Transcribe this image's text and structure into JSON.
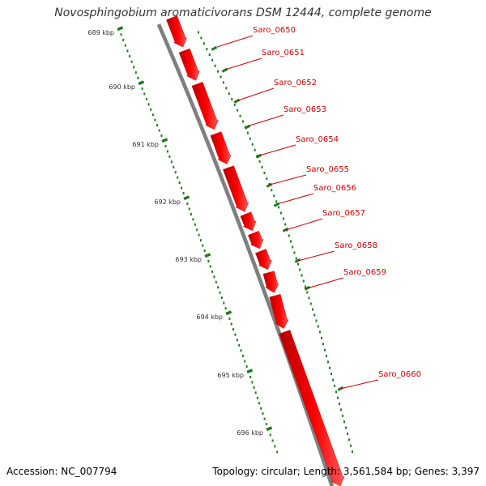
{
  "title": "Novosphingobium aromaticivorans DSM 12444, complete genome",
  "footer": {
    "accession": "Accession: NC_007794",
    "summary": "Topology: circular; Length: 3,561,584 bp; Genes: 3,397"
  },
  "colors": {
    "gene": "#ff0000",
    "gene_label": "#cc0000",
    "backbone": "#7f7f7f",
    "ruler": "#1e7a1e"
  },
  "ruler_labels": [
    "689 kbp",
    "690 kbp",
    "691 kbp",
    "692 kbp",
    "693 kbp",
    "694 kbp",
    "695 kbp",
    "696 kbp"
  ],
  "genes": [
    "Saro_0650",
    "Saro_0651",
    "Saro_0652",
    "Saro_0653",
    "Saro_0654",
    "Saro_0655",
    "Saro_0656",
    "Saro_0657",
    "Saro_0658",
    "Saro_0659",
    "Saro_0660"
  ]
}
